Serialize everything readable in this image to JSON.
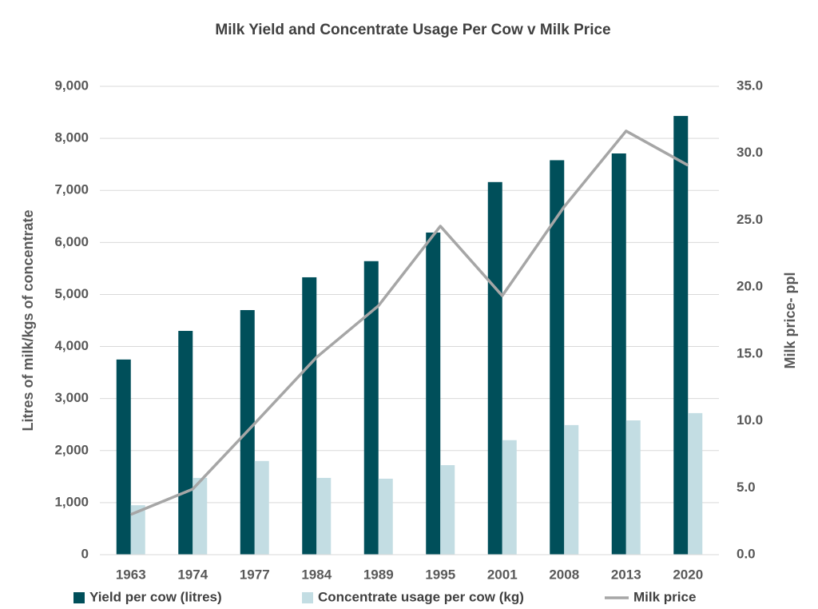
{
  "chart_data": {
    "type": "bar_line",
    "title": "Milk Yield and Concentrate Usage Per Cow v Milk Price",
    "y_label": "Litres of milk/kgs of concentrate",
    "y2_label": "Milk price- ppl",
    "categories": [
      "1963",
      "1974",
      "1977",
      "1984",
      "1989",
      "1995",
      "2001",
      "2008",
      "2013",
      "2020"
    ],
    "series": [
      {
        "name": "Yield per cow (litres)",
        "type": "bar",
        "color": "#004f5a",
        "values": [
          3750,
          4300,
          4700,
          5330,
          5640,
          6190,
          7160,
          7580,
          7710,
          8430
        ]
      },
      {
        "name": "Concentrate usage per cow (kg)",
        "type": "bar",
        "color": "#c3dde3",
        "values": [
          950,
          1475,
          1800,
          1475,
          1460,
          1720,
          2200,
          2490,
          2580,
          2720
        ]
      },
      {
        "name": "Milk price",
        "type": "line",
        "axis": "y2",
        "color": "#a6a6a6",
        "values": [
          3.0,
          4.9,
          9.8,
          14.75,
          18.6,
          24.55,
          19.35,
          26.0,
          31.66,
          29.1
        ]
      }
    ],
    "ylim": [
      0,
      9000
    ],
    "yticks": [
      0,
      {
        "value": 1000,
        "label": "1,000"
      },
      {
        "value": 2000,
        "label": "2,000"
      },
      {
        "value": 3000,
        "label": "3,000"
      },
      {
        "value": 4000,
        "label": "4,000"
      },
      {
        "value": 5000,
        "label": "5,000"
      },
      {
        "value": 6000,
        "label": "6,000"
      },
      {
        "value": 7000,
        "label": "7,000"
      },
      {
        "value": 8000,
        "label": "8,000"
      },
      {
        "value": 9000,
        "label": "9,000"
      }
    ],
    "y2lim": [
      0,
      35
    ],
    "y2ticks": [
      {
        "value": 0,
        "label": "0.0"
      },
      {
        "value": 5,
        "label": "5.0"
      },
      {
        "value": 10,
        "label": "10.0"
      },
      {
        "value": 15,
        "label": "15.0"
      },
      {
        "value": 20,
        "label": "20.0"
      },
      {
        "value": 25,
        "label": "25.0"
      },
      {
        "value": 30,
        "label": "30.0"
      },
      {
        "value": 35,
        "label": "35.0"
      }
    ],
    "grid": true,
    "legend": "bottom"
  }
}
